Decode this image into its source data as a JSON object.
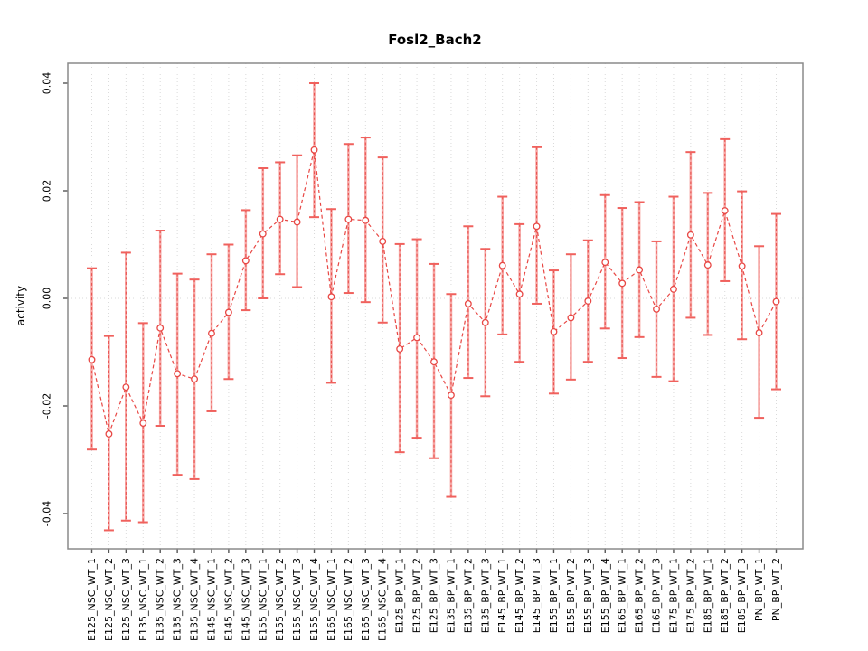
{
  "chart_data": {
    "type": "line",
    "title": "Fosl2_Bach2",
    "xlabel": "",
    "ylabel": "activity",
    "ylim": [
      -0.045,
      0.045
    ],
    "yticks": [
      0.04,
      0.02,
      0.0,
      -0.02,
      -0.04
    ],
    "ytick_labels": [
      "0.04",
      "0.02",
      "0.00",
      "-0.02",
      "-0.04"
    ],
    "grid": {
      "vertical_dotted_per_category": true,
      "horizontal_dotted_zero_line": true
    },
    "legend": null,
    "series_name": "activity estimate with confidence interval",
    "marker": "open-circle",
    "line_style": "dashed",
    "points": [
      {
        "label": "E125_NSC_WT_1",
        "value": -0.0114,
        "lo": -0.0281,
        "hi": 0.0056
      },
      {
        "label": "E125_NSC_WT_2",
        "value": -0.0252,
        "lo": -0.0431,
        "hi": -0.007
      },
      {
        "label": "E125_NSC_WT_3",
        "value": -0.0165,
        "lo": -0.0413,
        "hi": 0.0085
      },
      {
        "label": "E135_NSC_WT_1",
        "value": -0.0232,
        "lo": -0.0416,
        "hi": -0.0046
      },
      {
        "label": "E135_NSC_WT_2",
        "value": -0.0055,
        "lo": -0.0237,
        "hi": 0.0126
      },
      {
        "label": "E135_NSC_WT_3",
        "value": -0.014,
        "lo": -0.0328,
        "hi": 0.0046
      },
      {
        "label": "E135_NSC_WT_4",
        "value": -0.015,
        "lo": -0.0336,
        "hi": 0.0035
      },
      {
        "label": "E145_NSC_WT_1",
        "value": -0.0065,
        "lo": -0.021,
        "hi": 0.0082
      },
      {
        "label": "E145_NSC_WT_2",
        "value": -0.0026,
        "lo": -0.015,
        "hi": 0.01
      },
      {
        "label": "E145_NSC_WT_3",
        "value": 0.007,
        "lo": -0.0022,
        "hi": 0.0164
      },
      {
        "label": "E155_NSC_WT_1",
        "value": 0.012,
        "lo": 0.0,
        "hi": 0.0242
      },
      {
        "label": "E155_NSC_WT_2",
        "value": 0.0147,
        "lo": 0.0045,
        "hi": 0.0253
      },
      {
        "label": "E155_NSC_WT_3",
        "value": 0.0142,
        "lo": 0.0021,
        "hi": 0.0266
      },
      {
        "label": "E155_NSC_WT_4",
        "value": 0.0276,
        "lo": 0.0151,
        "hi": 0.04
      },
      {
        "label": "E165_NSC_WT_1",
        "value": 0.0003,
        "lo": -0.0157,
        "hi": 0.0166
      },
      {
        "label": "E165_NSC_WT_2",
        "value": 0.0147,
        "lo": 0.001,
        "hi": 0.0287
      },
      {
        "label": "E165_NSC_WT_3",
        "value": 0.0145,
        "lo": -0.0007,
        "hi": 0.0299
      },
      {
        "label": "E165_NSC_WT_4",
        "value": 0.0106,
        "lo": -0.0045,
        "hi": 0.0262
      },
      {
        "label": "E125_BP_WT_1",
        "value": -0.0094,
        "lo": -0.0286,
        "hi": 0.0101
      },
      {
        "label": "E125_BP_WT_2",
        "value": -0.0073,
        "lo": -0.0259,
        "hi": 0.011
      },
      {
        "label": "E125_BP_WT_3",
        "value": -0.0118,
        "lo": -0.0297,
        "hi": 0.0064
      },
      {
        "label": "E135_BP_WT_1",
        "value": -0.018,
        "lo": -0.0369,
        "hi": 0.0008
      },
      {
        "label": "E135_BP_WT_2",
        "value": -0.001,
        "lo": -0.0148,
        "hi": 0.0134
      },
      {
        "label": "E135_BP_WT_3",
        "value": -0.0045,
        "lo": -0.0182,
        "hi": 0.0092
      },
      {
        "label": "E145_BP_WT_1",
        "value": 0.0061,
        "lo": -0.0067,
        "hi": 0.0189
      },
      {
        "label": "E145_BP_WT_2",
        "value": 0.0008,
        "lo": -0.0118,
        "hi": 0.0138
      },
      {
        "label": "E145_BP_WT_3",
        "value": 0.0134,
        "lo": -0.001,
        "hi": 0.0281
      },
      {
        "label": "E155_BP_WT_1",
        "value": -0.0062,
        "lo": -0.0177,
        "hi": 0.0052
      },
      {
        "label": "E155_BP_WT_2",
        "value": -0.0036,
        "lo": -0.0151,
        "hi": 0.0082
      },
      {
        "label": "E155_BP_WT_3",
        "value": -0.0005,
        "lo": -0.0118,
        "hi": 0.0108
      },
      {
        "label": "E155_BP_WT_4",
        "value": 0.0067,
        "lo": -0.0056,
        "hi": 0.0192
      },
      {
        "label": "E165_BP_WT_1",
        "value": 0.0028,
        "lo": -0.0111,
        "hi": 0.0168
      },
      {
        "label": "E165_BP_WT_2",
        "value": 0.0053,
        "lo": -0.0072,
        "hi": 0.0179
      },
      {
        "label": "E165_BP_WT_3",
        "value": -0.002,
        "lo": -0.0146,
        "hi": 0.0106
      },
      {
        "label": "E175_BP_WT_1",
        "value": 0.0017,
        "lo": -0.0154,
        "hi": 0.0189
      },
      {
        "label": "E175_BP_WT_2",
        "value": 0.0118,
        "lo": -0.0036,
        "hi": 0.0272
      },
      {
        "label": "E185_BP_WT_1",
        "value": 0.0062,
        "lo": -0.0068,
        "hi": 0.0196
      },
      {
        "label": "E185_BP_WT_2",
        "value": 0.0163,
        "lo": 0.0032,
        "hi": 0.0296
      },
      {
        "label": "E185_BP_WT_3",
        "value": 0.006,
        "lo": -0.0076,
        "hi": 0.0199
      },
      {
        "label": "PN_BP_WT_1",
        "value": -0.0064,
        "lo": -0.0222,
        "hi": 0.0097
      },
      {
        "label": "PN_BP_WT_2",
        "value": -0.0006,
        "lo": -0.0169,
        "hi": 0.0157
      }
    ],
    "colors": {
      "series_red": "#e84744",
      "bar_underlay_pink": "#f6a6a4",
      "cap_red": "#f0615d",
      "grid_gray": "#dadada",
      "axis_gray": "#8a8a8a",
      "tick_gray": "#555555",
      "text_black": "#000000"
    }
  }
}
